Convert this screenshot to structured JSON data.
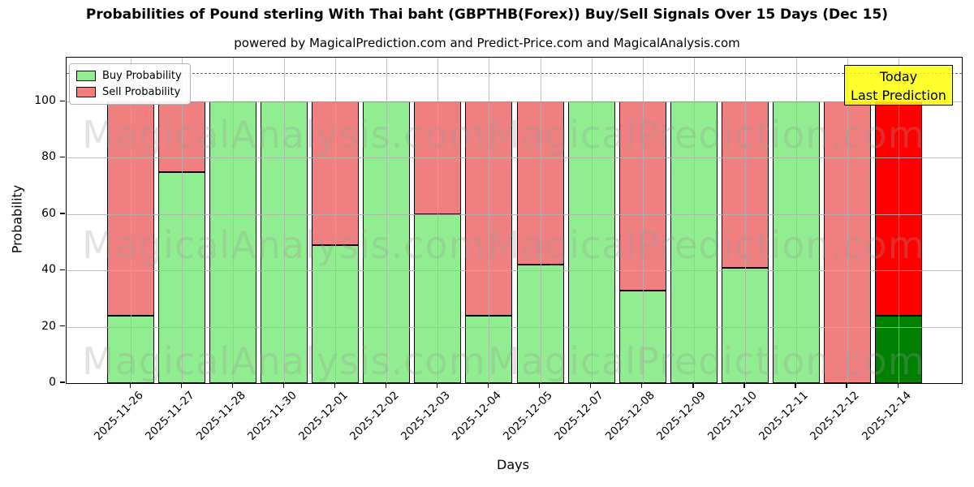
{
  "title": "Probabilities of Pound sterling With Thai baht (GBPTHB(Forex)) Buy/Sell Signals Over 15 Days (Dec 15)",
  "subtitle": "powered by MagicalPrediction.com and Predict-Price.com and MagicalAnalysis.com",
  "annotation": {
    "line1": "Today",
    "line2": "Last Prediction",
    "bg_color": "#ffff00"
  },
  "watermark": {
    "left_text": "MagicalAnalysis.com",
    "right_text": "MagicalPrediction.com"
  },
  "legend": [
    {
      "label": "Buy Probability",
      "color": "#90ee90"
    },
    {
      "label": "Sell Probability",
      "color": "#f08080"
    }
  ],
  "axes": {
    "ylabel": "Probability",
    "xlabel": "Days",
    "yticks": [
      0,
      20,
      40,
      60,
      80,
      100
    ],
    "grid": true
  },
  "chart_data": {
    "type": "bar",
    "stacked": true,
    "title": "Probabilities of Pound sterling With Thai baht (GBPTHB(Forex)) Buy/Sell Signals Over 15 Days (Dec 15)",
    "xlabel": "Days",
    "ylabel": "Probability",
    "ylim": [
      0,
      115.6
    ],
    "dashed_line_y": 110,
    "legend_position": "upper left",
    "categories": [
      "2025-11-26",
      "2025-11-27",
      "2025-11-28",
      "2025-11-30",
      "2025-12-01",
      "2025-12-02",
      "2025-12-03",
      "2025-12-04",
      "2025-12-05",
      "2025-12-07",
      "2025-12-08",
      "2025-12-09",
      "2025-12-10",
      "2025-12-11",
      "2025-12-12",
      "2025-12-14"
    ],
    "series": [
      {
        "name": "Buy Probability",
        "color": "#90ee90",
        "values": [
          24,
          75,
          100,
          100,
          49,
          100,
          60,
          24,
          42,
          100,
          33,
          100,
          41,
          100,
          0,
          24
        ]
      },
      {
        "name": "Sell Probability",
        "color": "#f08080",
        "values": [
          76,
          25,
          0,
          0,
          51,
          0,
          40,
          76,
          58,
          0,
          67,
          0,
          59,
          0,
          100,
          76
        ]
      }
    ],
    "today_index": 15,
    "today_colors": {
      "buy": "#008000",
      "sell": "#ff0000"
    }
  }
}
